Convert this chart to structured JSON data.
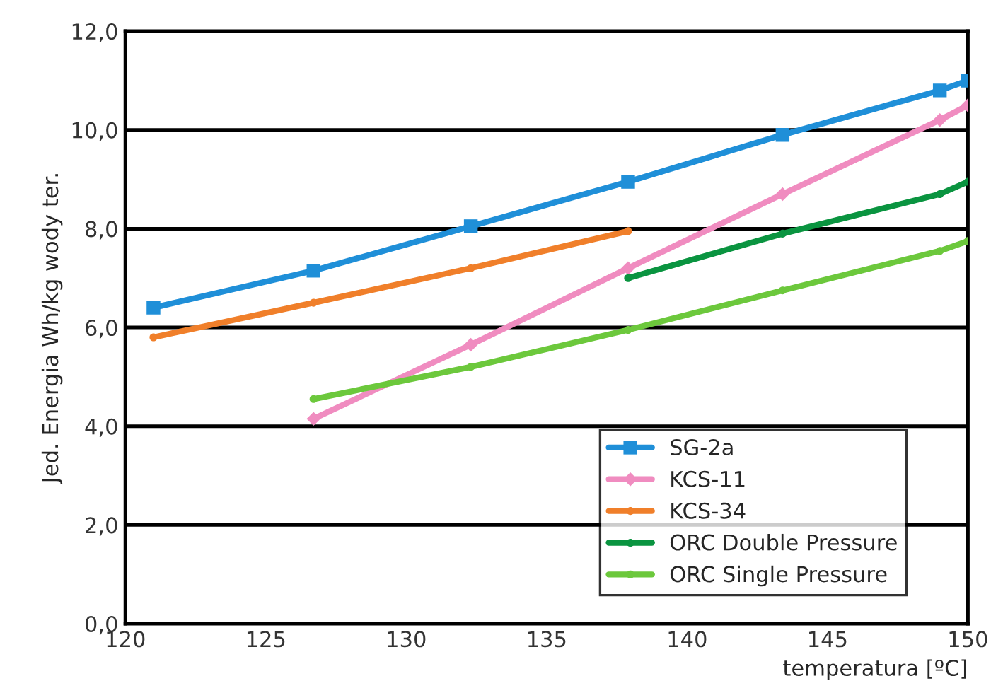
{
  "chart_data": {
    "type": "line",
    "xlabel": "temperatura [ºC]",
    "ylabel": "Jed. Energia Wh/kg wody ter.",
    "xlim": [
      120,
      150
    ],
    "xticks": [
      120,
      125,
      130,
      135,
      140,
      145,
      150
    ],
    "ylim": [
      0,
      12
    ],
    "yticks": [
      {
        "value": 0,
        "label": "0,0"
      },
      {
        "value": 2,
        "label": "2,0"
      },
      {
        "value": 4,
        "label": "4,0"
      },
      {
        "value": 6,
        "label": "6,0"
      },
      {
        "value": 8,
        "label": "8,0"
      },
      {
        "value": 10,
        "label": "10,0"
      },
      {
        "value": 12,
        "label": "12,0"
      }
    ],
    "grid": "y",
    "legend": "bottom right",
    "series": [
      {
        "name": "SG-2a",
        "color": "#1f8fd8",
        "marker": "square",
        "x": [
          121,
          126.7,
          132.3,
          137.9,
          143.4,
          149,
          150
        ],
        "values": [
          6.4,
          7.15,
          8.05,
          8.95,
          9.9,
          10.8,
          11.0
        ]
      },
      {
        "name": "KCS-11",
        "color": "#f08cc0",
        "marker": "diamond",
        "x": [
          126.7,
          132.3,
          137.9,
          143.4,
          149,
          150
        ],
        "values": [
          4.15,
          5.65,
          7.2,
          8.7,
          10.2,
          10.5
        ]
      },
      {
        "name": "KCS-34",
        "color": "#f07f2a",
        "marker": "circle",
        "x": [
          121,
          126.7,
          132.3,
          137.9
        ],
        "values": [
          5.8,
          6.5,
          7.2,
          7.95
        ]
      },
      {
        "name": "ORC Double Pressure",
        "color": "#0a9440",
        "marker": "circle",
        "x": [
          137.9,
          143.4,
          149,
          150
        ],
        "values": [
          7.0,
          7.9,
          8.7,
          8.95
        ]
      },
      {
        "name": "ORC Single Pressure",
        "color": "#6cc83c",
        "marker": "circle",
        "x": [
          126.7,
          132.3,
          137.9,
          143.4,
          149,
          150
        ],
        "values": [
          4.55,
          5.2,
          5.95,
          6.75,
          7.55,
          7.75
        ]
      }
    ]
  }
}
